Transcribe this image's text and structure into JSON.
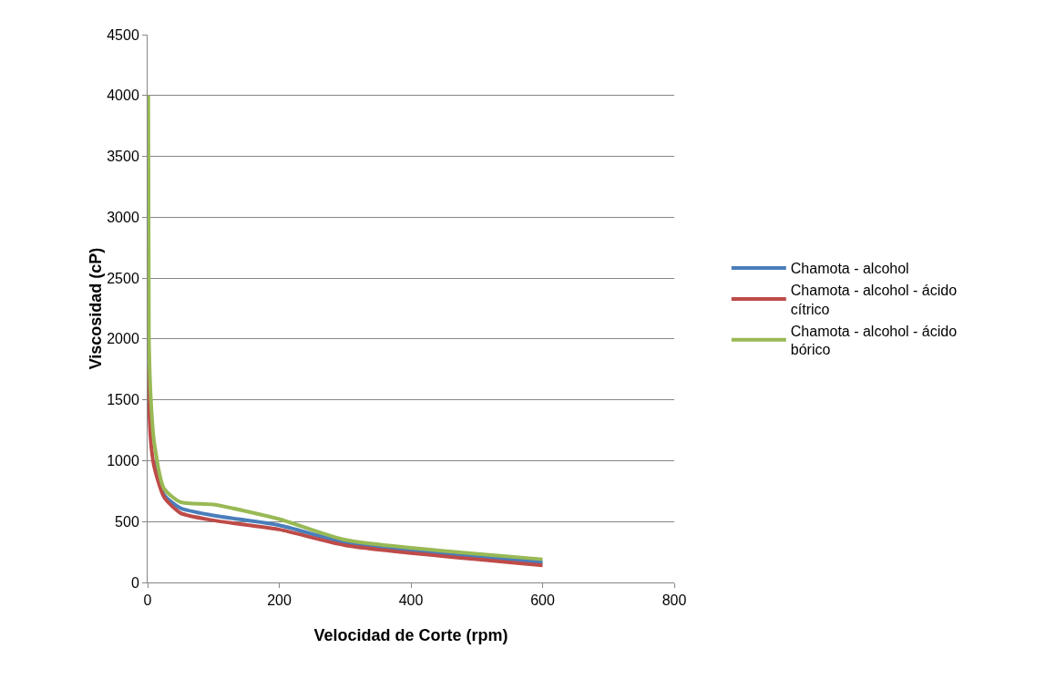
{
  "chart_data": {
    "type": "line",
    "xlabel": "Velocidad de Corte (rpm)",
    "ylabel": "Viscosidad (cP)",
    "x": [
      1,
      2,
      5,
      10,
      25,
      50,
      100,
      200,
      300,
      600
    ],
    "series": [
      {
        "name": "Chamota - alcohol",
        "color": "#4a7ebb",
        "values": [
          null,
          null,
          null,
          1000,
          720,
          610,
          550,
          470,
          330,
          165
        ]
      },
      {
        "name": "Chamota - alcohol - ácido cítrico",
        "color": "#be4b48",
        "values": [
          2000,
          1500,
          1150,
          950,
          700,
          570,
          510,
          435,
          305,
          140
        ]
      },
      {
        "name": "Chamota - alcohol - ácido bórico",
        "color": "#98b954",
        "values": [
          4000,
          2000,
          1500,
          1150,
          770,
          660,
          640,
          520,
          350,
          190
        ]
      }
    ],
    "xlim": [
      0,
      800
    ],
    "xticks": [
      0,
      200,
      400,
      600,
      800
    ],
    "ylim": [
      0,
      4500
    ],
    "yticks": [
      0,
      500,
      1000,
      1500,
      2000,
      2500,
      3000,
      3500,
      4000,
      4500
    ],
    "grid": "y",
    "legend": "right",
    "marker": "none",
    "line_style": "solid"
  }
}
